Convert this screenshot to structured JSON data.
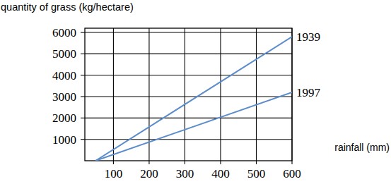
{
  "chart_data": {
    "type": "line",
    "title": "quantity of grass (kg/hectare)",
    "x_label": "rainfall (mm)",
    "x": [
      50,
      600
    ],
    "series": [
      {
        "name": "1939",
        "color": "#5b8ccc",
        "values": [
          0,
          5800
        ]
      },
      {
        "name": "1997",
        "color": "#5b8ccc",
        "values": [
          0,
          3200
        ]
      }
    ],
    "xlim": [
      20,
      600
    ],
    "xticks": [
      100,
      200,
      300,
      400,
      500,
      600
    ],
    "ylim": [
      0,
      6200
    ],
    "yticks": [
      1000,
      2000,
      3000,
      4000,
      5000,
      6000
    ],
    "grid": true
  }
}
